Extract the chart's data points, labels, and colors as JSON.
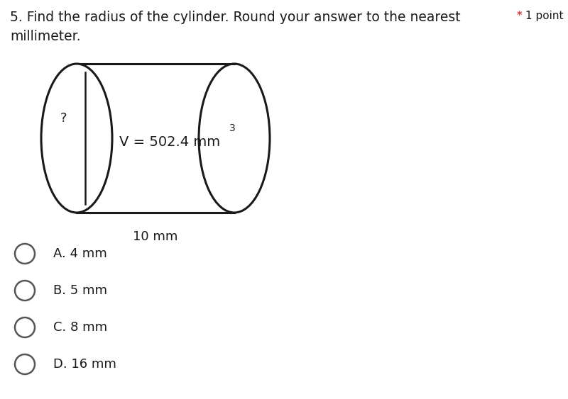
{
  "title_line1": "5. Find the radius of the cylinder. Round your answer to the nearest",
  "title_line2": "millimeter.",
  "point_label": "1 point",
  "star_label": "*",
  "volume_text": "V = 502.4 mm",
  "volume_superscript": "3",
  "height_label": "10 mm",
  "height_question": "?",
  "choices": [
    "A. 4 mm",
    "B. 5 mm",
    "C. 8 mm",
    "D. 16 mm"
  ],
  "bg_color": "#ffffff",
  "text_color": "#1a1a1a",
  "circle_color": "#555555",
  "star_color": "#cc0000",
  "cylinder_color": "#1a1a1a",
  "title_fontsize": 13.5,
  "choice_fontsize": 13,
  "point_fontsize": 11
}
